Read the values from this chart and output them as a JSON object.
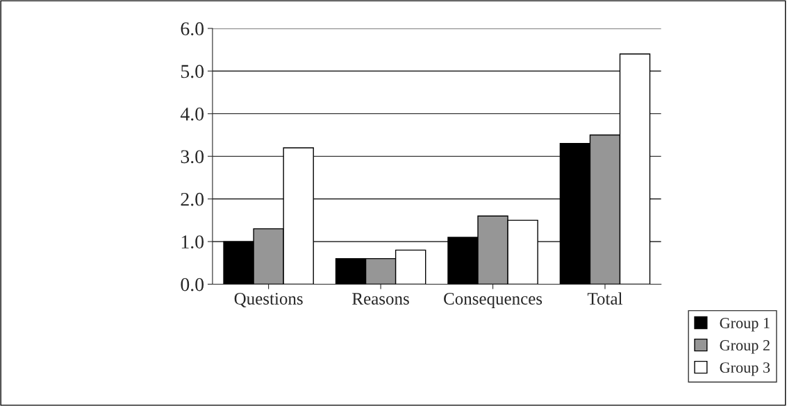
{
  "chart_data": {
    "type": "bar",
    "categories": [
      "Questions",
      "Reasons",
      "Consequences",
      "Total"
    ],
    "series": [
      {
        "name": "Group 1",
        "color": "#000000",
        "values": [
          1.0,
          0.6,
          1.1,
          3.3
        ]
      },
      {
        "name": "Group 2",
        "color": "#969696",
        "values": [
          1.3,
          0.6,
          1.6,
          3.5
        ]
      },
      {
        "name": "Group 3",
        "color": "#ffffff",
        "values": [
          3.2,
          0.8,
          1.5,
          5.4
        ]
      }
    ],
    "ylim": [
      0,
      6
    ],
    "yticks": [
      {
        "value": 0,
        "label": "0.0"
      },
      {
        "value": 1,
        "label": "1.0"
      },
      {
        "value": 2,
        "label": "2.0"
      },
      {
        "value": 3,
        "label": "3.0"
      },
      {
        "value": 4,
        "label": "4.0"
      },
      {
        "value": 5,
        "label": "5.0"
      },
      {
        "value": 6,
        "label": "6.0"
      }
    ],
    "grid": "y",
    "legend": "bottom right"
  }
}
